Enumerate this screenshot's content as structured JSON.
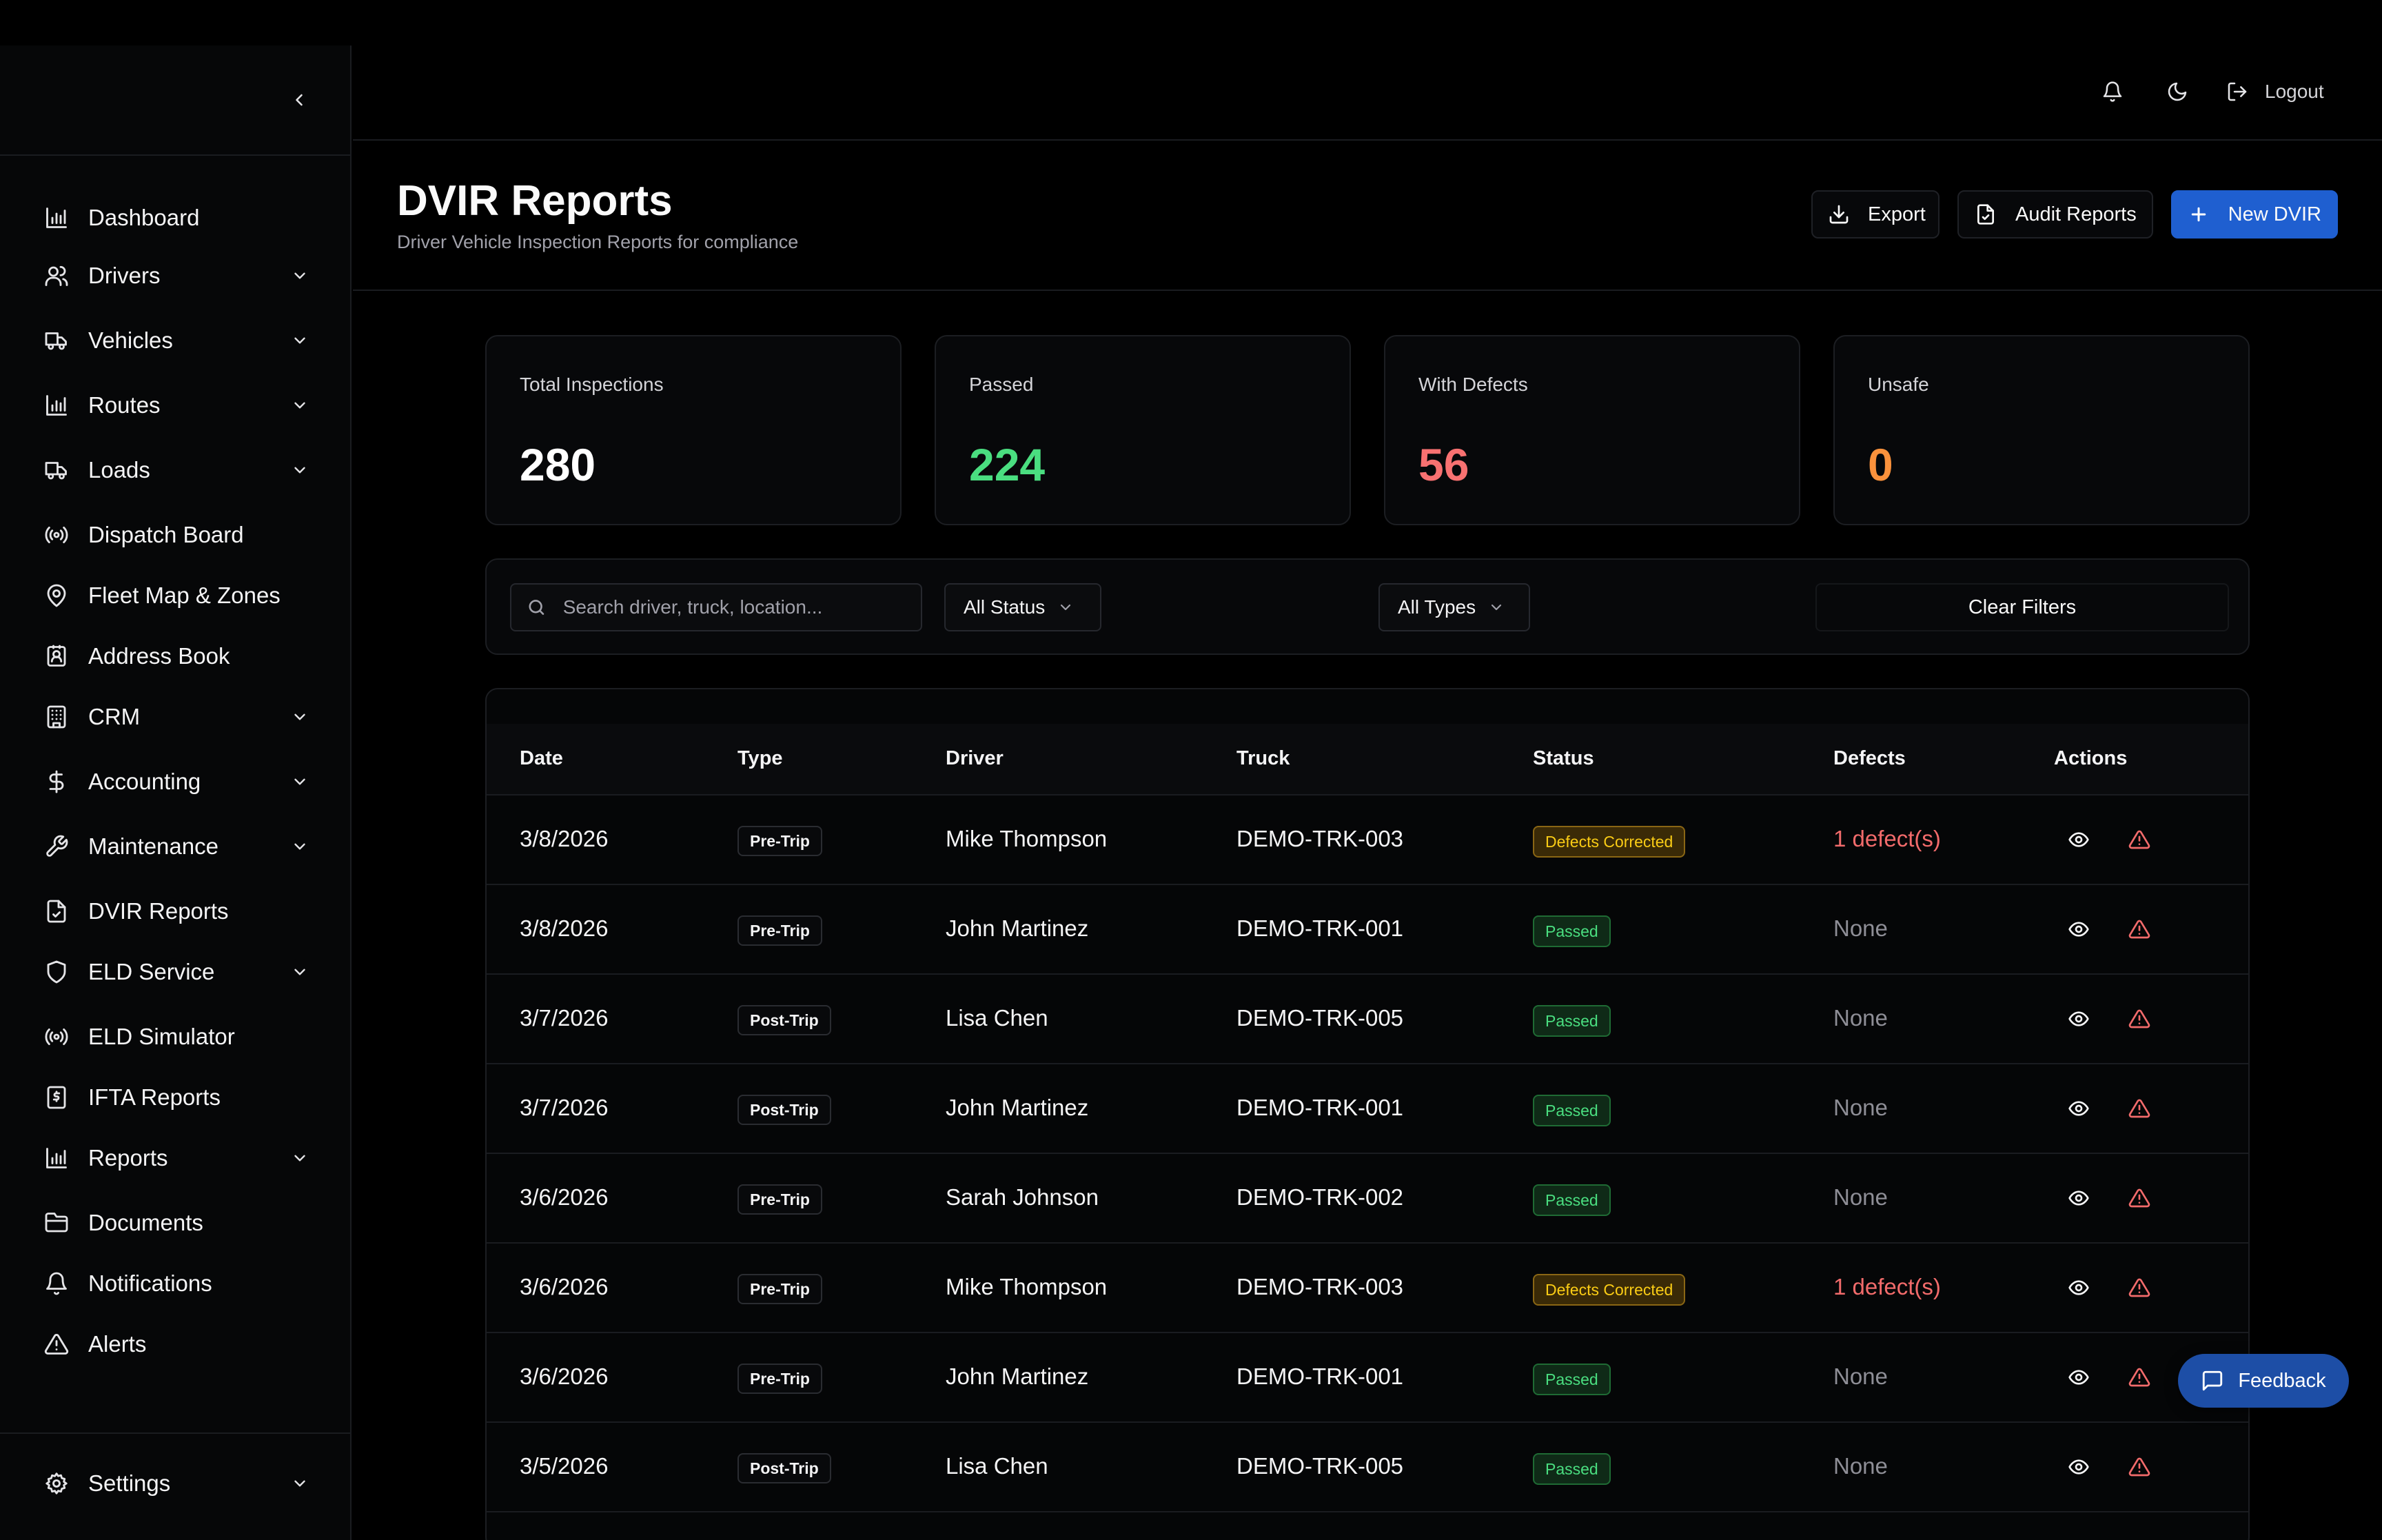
{
  "sidebar": {
    "items": [
      {
        "label": "Dashboard",
        "icon": "bar-chart-icon",
        "expandable": false
      },
      {
        "label": "Drivers",
        "icon": "users-icon",
        "expandable": true
      },
      {
        "label": "Vehicles",
        "icon": "truck-icon",
        "expandable": true
      },
      {
        "label": "Routes",
        "icon": "bar-chart-icon",
        "expandable": true
      },
      {
        "label": "Loads",
        "icon": "truck-icon",
        "expandable": true
      },
      {
        "label": "Dispatch Board",
        "icon": "radio-icon",
        "expandable": false
      },
      {
        "label": "Fleet Map & Zones",
        "icon": "map-pin-icon",
        "expandable": false
      },
      {
        "label": "Address Book",
        "icon": "contact-icon",
        "expandable": false
      },
      {
        "label": "CRM",
        "icon": "building-icon",
        "expandable": true
      },
      {
        "label": "Accounting",
        "icon": "dollar-icon",
        "expandable": true
      },
      {
        "label": "Maintenance",
        "icon": "wrench-icon",
        "expandable": true
      },
      {
        "label": "DVIR Reports",
        "icon": "file-check-icon",
        "expandable": false
      },
      {
        "label": "ELD Service",
        "icon": "shield-icon",
        "expandable": true
      },
      {
        "label": "ELD Simulator",
        "icon": "radio-icon",
        "expandable": false
      },
      {
        "label": "IFTA Reports",
        "icon": "receipt-icon",
        "expandable": false
      },
      {
        "label": "Reports",
        "icon": "bar-chart-icon",
        "expandable": true
      },
      {
        "label": "Documents",
        "icon": "folder-icon",
        "expandable": false
      },
      {
        "label": "Notifications",
        "icon": "bell-icon",
        "expandable": false
      },
      {
        "label": "Alerts",
        "icon": "alert-triangle-icon",
        "expandable": false
      }
    ],
    "settings": {
      "label": "Settings",
      "icon": "gear-icon"
    }
  },
  "header": {
    "logout_label": "Logout"
  },
  "page": {
    "title": "DVIR Reports",
    "subtitle": "Driver Vehicle Inspection Reports for compliance",
    "actions": {
      "export_label": "Export",
      "audit_label": "Audit Reports",
      "new_label": "New DVIR"
    }
  },
  "stats": [
    {
      "label": "Total Inspections",
      "value": "280",
      "color": "#ffffff"
    },
    {
      "label": "Passed",
      "value": "224",
      "color": "#4ade80"
    },
    {
      "label": "With Defects",
      "value": "56",
      "color": "#f87171"
    },
    {
      "label": "Unsafe",
      "value": "0",
      "color": "#fb923c"
    }
  ],
  "filters": {
    "search_placeholder": "Search driver, truck, location...",
    "status_value": "All Status",
    "type_value": "All Types",
    "clear_label": "Clear Filters"
  },
  "table": {
    "columns": [
      "Date",
      "Type",
      "Driver",
      "Truck",
      "Status",
      "Defects",
      "Actions"
    ],
    "rows": [
      {
        "date": "3/8/2026",
        "type": "Pre-Trip",
        "driver": "Mike Thompson",
        "truck": "DEMO-TRK-003",
        "status": "Defects Corrected",
        "status_kind": "corrected",
        "defects": "1 defect(s)",
        "has_defects": true
      },
      {
        "date": "3/8/2026",
        "type": "Pre-Trip",
        "driver": "John Martinez",
        "truck": "DEMO-TRK-001",
        "status": "Passed",
        "status_kind": "passed",
        "defects": "None",
        "has_defects": false
      },
      {
        "date": "3/7/2026",
        "type": "Post-Trip",
        "driver": "Lisa Chen",
        "truck": "DEMO-TRK-005",
        "status": "Passed",
        "status_kind": "passed",
        "defects": "None",
        "has_defects": false
      },
      {
        "date": "3/7/2026",
        "type": "Post-Trip",
        "driver": "John Martinez",
        "truck": "DEMO-TRK-001",
        "status": "Passed",
        "status_kind": "passed",
        "defects": "None",
        "has_defects": false
      },
      {
        "date": "3/6/2026",
        "type": "Pre-Trip",
        "driver": "Sarah Johnson",
        "truck": "DEMO-TRK-002",
        "status": "Passed",
        "status_kind": "passed",
        "defects": "None",
        "has_defects": false
      },
      {
        "date": "3/6/2026",
        "type": "Pre-Trip",
        "driver": "Mike Thompson",
        "truck": "DEMO-TRK-003",
        "status": "Defects Corrected",
        "status_kind": "corrected",
        "defects": "1 defect(s)",
        "has_defects": true
      },
      {
        "date": "3/6/2026",
        "type": "Pre-Trip",
        "driver": "John Martinez",
        "truck": "DEMO-TRK-001",
        "status": "Passed",
        "status_kind": "passed",
        "defects": "None",
        "has_defects": false
      },
      {
        "date": "3/5/2026",
        "type": "Post-Trip",
        "driver": "Lisa Chen",
        "truck": "DEMO-TRK-005",
        "status": "Passed",
        "status_kind": "passed",
        "defects": "None",
        "has_defects": false
      }
    ]
  },
  "feedback": {
    "label": "Feedback"
  },
  "colors": {
    "accent": "#1f5fd0",
    "passed": "#4ade80",
    "defects": "#f26b6b",
    "corrected": "#facc15"
  }
}
